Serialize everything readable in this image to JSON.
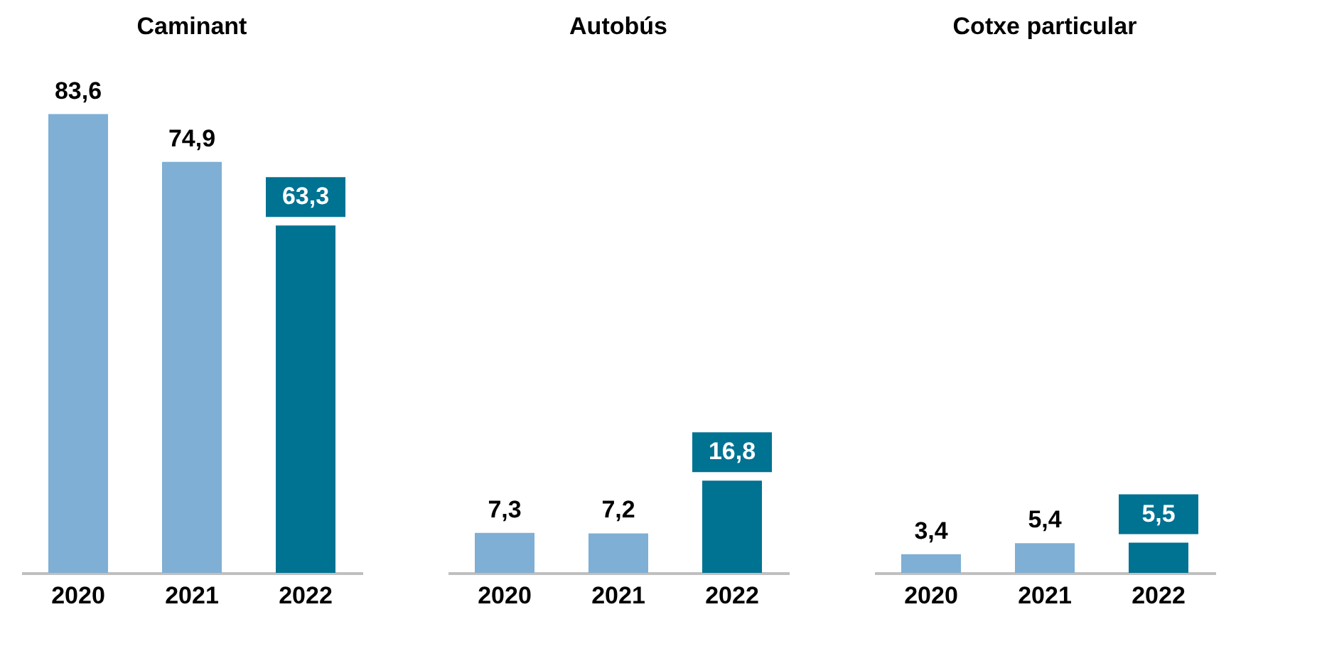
{
  "chart_data": [
    {
      "type": "bar",
      "title": "Caminant",
      "categories": [
        "2020",
        "2021",
        "2022"
      ],
      "values": [
        83.6,
        74.9,
        63.3
      ],
      "colors": [
        "#7fafd4",
        "#7fafd4",
        "#007292"
      ],
      "value_labels": [
        "83,6",
        "74,9",
        "63,3"
      ]
    },
    {
      "type": "bar",
      "title": "Autobús",
      "categories": [
        "2020",
        "2021",
        "2022"
      ],
      "values": [
        7.3,
        7.2,
        16.8
      ],
      "colors": [
        "#7fafd4",
        "#7fafd4",
        "#007292"
      ],
      "value_labels": [
        "7,3",
        "7,2",
        "16,8"
      ]
    },
    {
      "type": "bar",
      "title": "Cotxe particular",
      "categories": [
        "2020",
        "2021",
        "2022"
      ],
      "values": [
        3.4,
        5.4,
        5.5
      ],
      "colors": [
        "#7fafd4",
        "#7fafd4",
        "#007292"
      ],
      "value_labels": [
        "3,4",
        "5,4",
        "5,5"
      ]
    }
  ]
}
